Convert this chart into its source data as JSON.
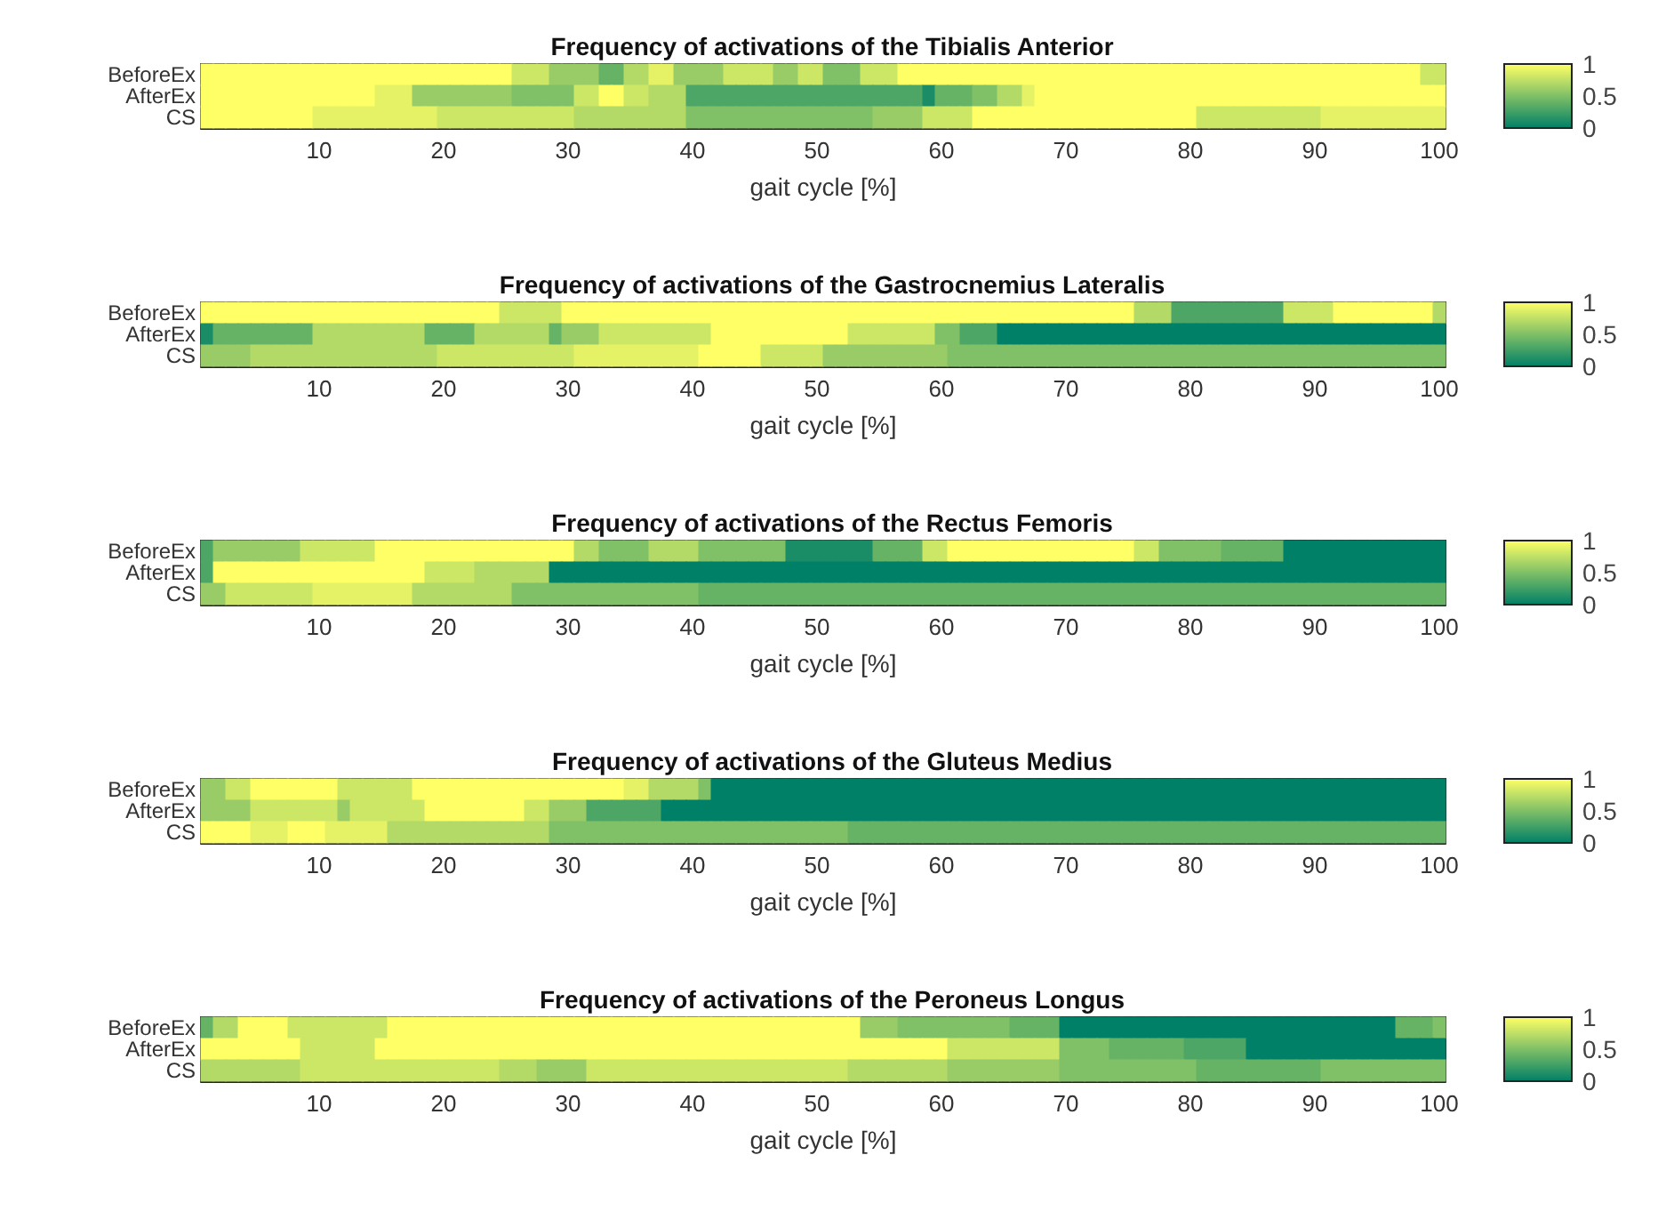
{
  "chart_data": [
    {
      "type": "heatmap",
      "title": "Frequency of activations of the Tibialis Anterior",
      "xlabel": "gait cycle [%]",
      "categories": [
        null,
        null,
        null,
        null,
        null,
        null,
        null,
        null,
        null,
        "10",
        null,
        null,
        null,
        null,
        null,
        null,
        null,
        null,
        null,
        "20",
        null,
        null,
        null,
        null,
        null,
        null,
        null,
        null,
        null,
        "30",
        null,
        null,
        null,
        null,
        null,
        null,
        null,
        null,
        null,
        "40",
        null,
        null,
        null,
        null,
        null,
        null,
        null,
        null,
        null,
        "50",
        null,
        null,
        null,
        null,
        null,
        null,
        null,
        null,
        null,
        "60",
        null,
        null,
        null,
        null,
        null,
        null,
        null,
        null,
        null,
        "70",
        null,
        null,
        null,
        null,
        null,
        null,
        null,
        null,
        null,
        "80",
        null,
        null,
        null,
        null,
        null,
        null,
        null,
        null,
        null,
        "90",
        null,
        null,
        null,
        null,
        null,
        null,
        null,
        null,
        null,
        "100"
      ],
      "y_categories": [
        "BeforeEx",
        "AfterEx",
        "CS"
      ],
      "cells": [
        [
          1,
          1,
          1,
          1,
          1,
          1,
          1,
          1,
          1,
          1,
          1,
          1,
          1,
          1,
          1,
          1,
          1,
          1,
          1,
          1,
          1,
          1,
          1,
          1,
          1,
          0.8,
          0.8,
          0.8,
          0.6,
          0.6,
          0.6,
          0.6,
          0.4,
          0.4,
          0.7,
          0.7,
          0.9,
          0.9,
          0.6,
          0.6,
          0.6,
          0.6,
          0.8,
          0.8,
          0.8,
          0.8,
          0.6,
          0.6,
          0.8,
          0.8,
          0.5,
          0.5,
          0.5,
          0.8,
          0.8,
          0.8,
          1,
          1,
          1,
          1,
          1,
          1,
          1,
          1,
          1,
          1,
          1,
          1,
          1,
          1,
          1,
          1,
          1,
          1,
          1,
          1,
          1,
          1,
          1,
          1,
          1,
          1,
          1,
          1,
          1,
          1,
          1,
          1,
          1,
          1,
          1,
          1,
          1,
          1,
          1,
          1,
          1,
          1,
          0.8,
          0.8
        ],
        [
          1,
          1,
          1,
          1,
          1,
          1,
          1,
          1,
          1,
          1,
          1,
          1,
          1,
          1,
          0.9,
          0.9,
          0.9,
          0.6,
          0.6,
          0.6,
          0.6,
          0.6,
          0.6,
          0.6,
          0.6,
          0.5,
          0.5,
          0.5,
          0.5,
          0.5,
          0.8,
          0.8,
          1,
          1,
          0.8,
          0.8,
          0.7,
          0.7,
          0.7,
          0.3,
          0.3,
          0.3,
          0.3,
          0.3,
          0.3,
          0.3,
          0.3,
          0.3,
          0.3,
          0.3,
          0.3,
          0.3,
          0.3,
          0.3,
          0.3,
          0.3,
          0.3,
          0.3,
          0.1,
          0.4,
          0.4,
          0.4,
          0.5,
          0.5,
          0.7,
          0.7,
          0.9,
          1,
          1,
          1,
          1,
          1,
          1,
          1,
          1,
          1,
          1,
          1,
          1,
          1,
          1,
          1,
          1,
          1,
          1,
          1,
          1,
          1,
          1,
          1,
          1,
          1,
          1,
          1,
          1,
          1,
          1,
          1,
          1,
          1
        ],
        [
          1,
          1,
          1,
          1,
          1,
          1,
          1,
          1,
          1,
          0.9,
          0.9,
          0.9,
          0.9,
          0.9,
          0.9,
          0.9,
          0.9,
          0.9,
          0.9,
          0.8,
          0.8,
          0.8,
          0.8,
          0.8,
          0.8,
          0.8,
          0.8,
          0.8,
          0.8,
          0.8,
          0.7,
          0.7,
          0.7,
          0.7,
          0.7,
          0.7,
          0.7,
          0.7,
          0.7,
          0.5,
          0.5,
          0.5,
          0.5,
          0.5,
          0.5,
          0.5,
          0.5,
          0.5,
          0.5,
          0.5,
          0.5,
          0.5,
          0.5,
          0.5,
          0.6,
          0.6,
          0.6,
          0.6,
          0.8,
          0.8,
          0.8,
          0.8,
          1,
          1,
          1,
          1,
          1,
          1,
          1,
          1,
          1,
          1,
          1,
          1,
          1,
          1,
          1,
          1,
          1,
          1,
          0.8,
          0.8,
          0.8,
          0.8,
          0.8,
          0.8,
          0.8,
          0.8,
          0.8,
          0.8,
          0.9,
          0.9,
          0.9,
          0.9,
          0.9,
          0.9,
          0.9,
          0.9,
          0.9,
          0.9
        ]
      ],
      "clim": [
        0,
        1
      ],
      "cticks": [
        0,
        0.5,
        1
      ]
    },
    {
      "type": "heatmap",
      "title": "Frequency of activations of the Gastrocnemius Lateralis",
      "xlabel": "gait cycle [%]",
      "categories": [
        null,
        null,
        null,
        null,
        null,
        null,
        null,
        null,
        null,
        "10",
        null,
        null,
        null,
        null,
        null,
        null,
        null,
        null,
        null,
        "20",
        null,
        null,
        null,
        null,
        null,
        null,
        null,
        null,
        null,
        "30",
        null,
        null,
        null,
        null,
        null,
        null,
        null,
        null,
        null,
        "40",
        null,
        null,
        null,
        null,
        null,
        null,
        null,
        null,
        null,
        "50",
        null,
        null,
        null,
        null,
        null,
        null,
        null,
        null,
        null,
        "60",
        null,
        null,
        null,
        null,
        null,
        null,
        null,
        null,
        null,
        "70",
        null,
        null,
        null,
        null,
        null,
        null,
        null,
        null,
        null,
        "80",
        null,
        null,
        null,
        null,
        null,
        null,
        null,
        null,
        null,
        "90",
        null,
        null,
        null,
        null,
        null,
        null,
        null,
        null,
        null,
        "100"
      ],
      "y_categories": [
        "BeforeEx",
        "AfterEx",
        "CS"
      ],
      "cells": [
        [
          1,
          1,
          1,
          1,
          1,
          1,
          1,
          1,
          1,
          1,
          1,
          1,
          1,
          1,
          1,
          1,
          1,
          1,
          1,
          1,
          1,
          1,
          1,
          1,
          0.8,
          0.8,
          0.8,
          0.8,
          0.8,
          1,
          1,
          1,
          1,
          1,
          1,
          1,
          1,
          1,
          1,
          1,
          1,
          1,
          1,
          1,
          1,
          1,
          1,
          1,
          1,
          1,
          1,
          1,
          1,
          1,
          1,
          1,
          1,
          1,
          1,
          1,
          1,
          1,
          1,
          1,
          1,
          1,
          1,
          1,
          1,
          1,
          1,
          1,
          1,
          1,
          1,
          0.7,
          0.7,
          0.7,
          0.3,
          0.3,
          0.3,
          0.3,
          0.3,
          0.3,
          0.3,
          0.3,
          0.3,
          0.8,
          0.8,
          0.8,
          0.8,
          1,
          1,
          1,
          1,
          1,
          1,
          1,
          1,
          0.7
        ],
        [
          0.1,
          0.4,
          0.4,
          0.4,
          0.4,
          0.4,
          0.4,
          0.4,
          0.4,
          0.7,
          0.7,
          0.7,
          0.7,
          0.7,
          0.7,
          0.7,
          0.7,
          0.7,
          0.4,
          0.4,
          0.4,
          0.4,
          0.7,
          0.7,
          0.7,
          0.7,
          0.7,
          0.7,
          0.4,
          0.6,
          0.6,
          0.6,
          0.8,
          0.8,
          0.8,
          0.8,
          0.8,
          0.8,
          0.8,
          0.8,
          0.8,
          1,
          1,
          1,
          1,
          1,
          1,
          1,
          1,
          1,
          1,
          1,
          0.8,
          0.8,
          0.8,
          0.8,
          0.8,
          0.8,
          0.8,
          0.5,
          0.5,
          0.3,
          0.3,
          0.3,
          0,
          0,
          0,
          0,
          0,
          0,
          0,
          0,
          0,
          0,
          0,
          0,
          0,
          0,
          0,
          0,
          0,
          0,
          0,
          0,
          0,
          0,
          0,
          0,
          0,
          0,
          0,
          0,
          0,
          0,
          0,
          0,
          0,
          0,
          0,
          0
        ],
        [
          0.6,
          0.6,
          0.6,
          0.6,
          0.7,
          0.7,
          0.7,
          0.7,
          0.7,
          0.7,
          0.7,
          0.7,
          0.7,
          0.7,
          0.7,
          0.7,
          0.7,
          0.7,
          0.7,
          0.8,
          0.8,
          0.8,
          0.8,
          0.8,
          0.8,
          0.8,
          0.8,
          0.8,
          0.8,
          0.8,
          0.9,
          0.9,
          0.9,
          0.9,
          0.9,
          0.9,
          0.9,
          0.9,
          0.9,
          0.9,
          1,
          1,
          1,
          1,
          1,
          0.8,
          0.8,
          0.8,
          0.8,
          0.8,
          0.6,
          0.6,
          0.6,
          0.6,
          0.6,
          0.6,
          0.6,
          0.6,
          0.6,
          0.6,
          0.5,
          0.5,
          0.5,
          0.5,
          0.5,
          0.5,
          0.5,
          0.5,
          0.5,
          0.5,
          0.5,
          0.5,
          0.5,
          0.5,
          0.5,
          0.5,
          0.5,
          0.5,
          0.5,
          0.5,
          0.5,
          0.5,
          0.5,
          0.5,
          0.5,
          0.5,
          0.5,
          0.5,
          0.5,
          0.5,
          0.5,
          0.5,
          0.5,
          0.5,
          0.5,
          0.5,
          0.5,
          0.5,
          0.5,
          0.5
        ]
      ],
      "clim": [
        0,
        1
      ],
      "cticks": [
        0,
        0.5,
        1
      ]
    },
    {
      "type": "heatmap",
      "title": "Frequency of activations of the Rectus Femoris",
      "xlabel": "gait cycle [%]",
      "categories": [
        null,
        null,
        null,
        null,
        null,
        null,
        null,
        null,
        null,
        "10",
        null,
        null,
        null,
        null,
        null,
        null,
        null,
        null,
        null,
        "20",
        null,
        null,
        null,
        null,
        null,
        null,
        null,
        null,
        null,
        "30",
        null,
        null,
        null,
        null,
        null,
        null,
        null,
        null,
        null,
        "40",
        null,
        null,
        null,
        null,
        null,
        null,
        null,
        null,
        null,
        "50",
        null,
        null,
        null,
        null,
        null,
        null,
        null,
        null,
        null,
        "60",
        null,
        null,
        null,
        null,
        null,
        null,
        null,
        null,
        null,
        "70",
        null,
        null,
        null,
        null,
        null,
        null,
        null,
        null,
        null,
        "80",
        null,
        null,
        null,
        null,
        null,
        null,
        null,
        null,
        null,
        "90",
        null,
        null,
        null,
        null,
        null,
        null,
        null,
        null,
        null,
        "100"
      ],
      "y_categories": [
        "BeforeEx",
        "AfterEx",
        "CS"
      ],
      "cells": [
        [
          0.3,
          0.6,
          0.6,
          0.6,
          0.6,
          0.6,
          0.6,
          0.6,
          0.8,
          0.8,
          0.8,
          0.8,
          0.8,
          0.8,
          1,
          1,
          1,
          1,
          1,
          1,
          1,
          1,
          1,
          1,
          1,
          1,
          1,
          1,
          1,
          1,
          0.7,
          0.7,
          0.5,
          0.5,
          0.5,
          0.5,
          0.7,
          0.7,
          0.7,
          0.7,
          0.5,
          0.5,
          0.5,
          0.5,
          0.5,
          0.5,
          0.5,
          0.1,
          0.1,
          0.1,
          0.1,
          0.1,
          0.1,
          0.1,
          0.4,
          0.4,
          0.4,
          0.4,
          0.8,
          0.8,
          1,
          1,
          1,
          1,
          1,
          1,
          1,
          1,
          1,
          1,
          1,
          1,
          1,
          1,
          1,
          0.8,
          0.8,
          0.5,
          0.5,
          0.5,
          0.5,
          0.5,
          0.4,
          0.4,
          0.4,
          0.4,
          0.4,
          0,
          0,
          0,
          0,
          0,
          0,
          0,
          0,
          0,
          0,
          0,
          0,
          0
        ],
        [
          0.3,
          1,
          1,
          1,
          1,
          1,
          1,
          1,
          1,
          1,
          1,
          1,
          1,
          1,
          1,
          1,
          1,
          1,
          0.8,
          0.8,
          0.8,
          0.8,
          0.7,
          0.7,
          0.7,
          0.7,
          0.7,
          0.7,
          0,
          0,
          0,
          0,
          0,
          0,
          0,
          0,
          0,
          0,
          0,
          0,
          0,
          0,
          0,
          0,
          0,
          0,
          0,
          0,
          0,
          0,
          0,
          0,
          0,
          0,
          0,
          0,
          0,
          0,
          0,
          0,
          0,
          0,
          0,
          0,
          0,
          0,
          0,
          0,
          0,
          0,
          0,
          0,
          0,
          0,
          0,
          0,
          0,
          0,
          0,
          0,
          0,
          0,
          0,
          0,
          0,
          0,
          0,
          0,
          0,
          0,
          0,
          0,
          0,
          0,
          0,
          0,
          0,
          0,
          0,
          0
        ],
        [
          0.6,
          0.6,
          0.8,
          0.8,
          0.8,
          0.8,
          0.8,
          0.8,
          0.8,
          0.9,
          0.9,
          0.9,
          0.9,
          0.9,
          0.9,
          0.9,
          0.9,
          0.7,
          0.7,
          0.7,
          0.7,
          0.7,
          0.7,
          0.7,
          0.7,
          0.5,
          0.5,
          0.5,
          0.5,
          0.5,
          0.5,
          0.5,
          0.5,
          0.5,
          0.5,
          0.5,
          0.5,
          0.5,
          0.5,
          0.5,
          0.4,
          0.4,
          0.4,
          0.4,
          0.4,
          0.4,
          0.4,
          0.4,
          0.4,
          0.4,
          0.4,
          0.4,
          0.4,
          0.4,
          0.4,
          0.4,
          0.4,
          0.4,
          0.4,
          0.4,
          0.4,
          0.4,
          0.4,
          0.4,
          0.4,
          0.4,
          0.4,
          0.4,
          0.4,
          0.4,
          0.4,
          0.4,
          0.4,
          0.4,
          0.4,
          0.4,
          0.4,
          0.4,
          0.4,
          0.4,
          0.4,
          0.4,
          0.4,
          0.4,
          0.4,
          0.4,
          0.4,
          0.4,
          0.4,
          0.4,
          0.4,
          0.4,
          0.4,
          0.4,
          0.4,
          0.4,
          0.4,
          0.4,
          0.4,
          0.4
        ]
      ],
      "clim": [
        0,
        1
      ],
      "cticks": [
        0,
        0.5,
        1
      ]
    },
    {
      "type": "heatmap",
      "title": "Frequency of activations of the Gluteus Medius",
      "xlabel": "gait cycle [%]",
      "categories": [
        null,
        null,
        null,
        null,
        null,
        null,
        null,
        null,
        null,
        "10",
        null,
        null,
        null,
        null,
        null,
        null,
        null,
        null,
        null,
        "20",
        null,
        null,
        null,
        null,
        null,
        null,
        null,
        null,
        null,
        "30",
        null,
        null,
        null,
        null,
        null,
        null,
        null,
        null,
        null,
        "40",
        null,
        null,
        null,
        null,
        null,
        null,
        null,
        null,
        null,
        "50",
        null,
        null,
        null,
        null,
        null,
        null,
        null,
        null,
        null,
        "60",
        null,
        null,
        null,
        null,
        null,
        null,
        null,
        null,
        null,
        "70",
        null,
        null,
        null,
        null,
        null,
        null,
        null,
        null,
        null,
        "80",
        null,
        null,
        null,
        null,
        null,
        null,
        null,
        null,
        null,
        "90",
        null,
        null,
        null,
        null,
        null,
        null,
        null,
        null,
        null,
        "100"
      ],
      "y_categories": [
        "BeforeEx",
        "AfterEx",
        "CS"
      ],
      "cells": [
        [
          0.6,
          0.6,
          0.8,
          0.8,
          1,
          1,
          1,
          1,
          1,
          1,
          1,
          0.8,
          0.8,
          0.8,
          0.8,
          0.8,
          0.8,
          1,
          1,
          1,
          1,
          1,
          1,
          1,
          1,
          1,
          1,
          1,
          1,
          1,
          1,
          1,
          1,
          1,
          0.9,
          0.9,
          0.7,
          0.7,
          0.7,
          0.7,
          0.5,
          0,
          0,
          0,
          0,
          0,
          0,
          0,
          0,
          0,
          0,
          0,
          0,
          0,
          0,
          0,
          0,
          0,
          0,
          0,
          0,
          0,
          0,
          0,
          0,
          0,
          0,
          0,
          0,
          0,
          0,
          0,
          0,
          0,
          0,
          0,
          0,
          0,
          0,
          0,
          0,
          0,
          0,
          0,
          0,
          0,
          0,
          0,
          0,
          0,
          0,
          0,
          0,
          0,
          0,
          0,
          0,
          0,
          0,
          0
        ],
        [
          0.6,
          0.6,
          0.6,
          0.6,
          0.8,
          0.8,
          0.8,
          0.8,
          0.8,
          0.8,
          0.8,
          0.6,
          0.8,
          0.8,
          0.8,
          0.8,
          0.8,
          0.8,
          1,
          1,
          1,
          1,
          1,
          1,
          1,
          1,
          0.8,
          0.8,
          0.6,
          0.6,
          0.6,
          0.3,
          0.3,
          0.3,
          0.3,
          0.3,
          0.3,
          0,
          0,
          0,
          0,
          0,
          0,
          0,
          0,
          0,
          0,
          0,
          0,
          0,
          0,
          0,
          0,
          0,
          0,
          0,
          0,
          0,
          0,
          0,
          0,
          0,
          0,
          0,
          0,
          0,
          0,
          0,
          0,
          0,
          0,
          0,
          0,
          0,
          0,
          0,
          0,
          0,
          0,
          0,
          0,
          0,
          0,
          0,
          0,
          0,
          0,
          0,
          0,
          0,
          0,
          0,
          0,
          0,
          0,
          0,
          0,
          0,
          0,
          0
        ],
        [
          1,
          1,
          1,
          1,
          0.9,
          0.9,
          0.9,
          1,
          1,
          1,
          0.9,
          0.9,
          0.9,
          0.9,
          0.9,
          0.7,
          0.7,
          0.7,
          0.7,
          0.7,
          0.7,
          0.7,
          0.7,
          0.7,
          0.7,
          0.7,
          0.7,
          0.7,
          0.5,
          0.5,
          0.5,
          0.5,
          0.5,
          0.5,
          0.5,
          0.5,
          0.5,
          0.5,
          0.5,
          0.5,
          0.5,
          0.5,
          0.5,
          0.5,
          0.5,
          0.5,
          0.5,
          0.5,
          0.5,
          0.5,
          0.5,
          0.5,
          0.4,
          0.4,
          0.4,
          0.4,
          0.4,
          0.4,
          0.4,
          0.4,
          0.4,
          0.4,
          0.4,
          0.4,
          0.4,
          0.4,
          0.4,
          0.4,
          0.4,
          0.4,
          0.4,
          0.4,
          0.4,
          0.4,
          0.4,
          0.4,
          0.4,
          0.4,
          0.4,
          0.4,
          0.4,
          0.4,
          0.4,
          0.4,
          0.4,
          0.4,
          0.4,
          0.4,
          0.4,
          0.4,
          0.4,
          0.4,
          0.4,
          0.4,
          0.4,
          0.4,
          0.4,
          0.4,
          0.4,
          0.4
        ]
      ],
      "clim": [
        0,
        1
      ],
      "cticks": [
        0,
        0.5,
        1
      ]
    },
    {
      "type": "heatmap",
      "title": "Frequency of activations of the Peroneus Longus",
      "xlabel": "gait cycle [%]",
      "categories": [
        null,
        null,
        null,
        null,
        null,
        null,
        null,
        null,
        null,
        "10",
        null,
        null,
        null,
        null,
        null,
        null,
        null,
        null,
        null,
        "20",
        null,
        null,
        null,
        null,
        null,
        null,
        null,
        null,
        null,
        "30",
        null,
        null,
        null,
        null,
        null,
        null,
        null,
        null,
        null,
        "40",
        null,
        null,
        null,
        null,
        null,
        null,
        null,
        null,
        null,
        "50",
        null,
        null,
        null,
        null,
        null,
        null,
        null,
        null,
        null,
        "60",
        null,
        null,
        null,
        null,
        null,
        null,
        null,
        null,
        null,
        "70",
        null,
        null,
        null,
        null,
        null,
        null,
        null,
        null,
        null,
        "80",
        null,
        null,
        null,
        null,
        null,
        null,
        null,
        null,
        null,
        "90",
        null,
        null,
        null,
        null,
        null,
        null,
        null,
        null,
        null,
        "100"
      ],
      "y_categories": [
        "BeforeEx",
        "AfterEx",
        "CS"
      ],
      "cells": [
        [
          0.4,
          0.7,
          0.7,
          1,
          1,
          1,
          1,
          0.8,
          0.8,
          0.8,
          0.8,
          0.8,
          0.8,
          0.8,
          0.8,
          1,
          1,
          1,
          1,
          1,
          1,
          1,
          1,
          1,
          1,
          1,
          1,
          1,
          1,
          1,
          1,
          1,
          1,
          1,
          1,
          1,
          1,
          1,
          1,
          1,
          1,
          1,
          1,
          1,
          1,
          1,
          1,
          1,
          1,
          1,
          1,
          1,
          1,
          0.6,
          0.6,
          0.6,
          0.5,
          0.5,
          0.5,
          0.5,
          0.5,
          0.5,
          0.5,
          0.5,
          0.5,
          0.4,
          0.4,
          0.4,
          0.4,
          0,
          0,
          0,
          0,
          0,
          0,
          0,
          0,
          0,
          0,
          0,
          0,
          0,
          0,
          0,
          0,
          0,
          0,
          0,
          0,
          0,
          0,
          0,
          0,
          0,
          0,
          0,
          0.4,
          0.4,
          0.4,
          0.5
        ],
        [
          1,
          1,
          1,
          1,
          1,
          1,
          1,
          1,
          0.8,
          0.8,
          0.8,
          0.8,
          0.8,
          0.8,
          1,
          1,
          1,
          1,
          1,
          1,
          1,
          1,
          1,
          1,
          1,
          1,
          1,
          1,
          1,
          1,
          1,
          1,
          1,
          1,
          1,
          1,
          1,
          1,
          1,
          1,
          1,
          1,
          1,
          1,
          1,
          1,
          1,
          1,
          1,
          1,
          1,
          1,
          1,
          1,
          1,
          1,
          1,
          1,
          1,
          1,
          0.8,
          0.8,
          0.8,
          0.8,
          0.8,
          0.8,
          0.8,
          0.8,
          0.8,
          0.5,
          0.5,
          0.5,
          0.5,
          0.4,
          0.4,
          0.4,
          0.4,
          0.4,
          0.4,
          0.3,
          0.3,
          0.3,
          0.3,
          0.3,
          0,
          0,
          0,
          0,
          0,
          0,
          0,
          0,
          0,
          0,
          0,
          0,
          0,
          0,
          0,
          0
        ],
        [
          0.7,
          0.7,
          0.7,
          0.7,
          0.7,
          0.7,
          0.7,
          0.7,
          0.8,
          0.8,
          0.8,
          0.8,
          0.8,
          0.8,
          0.8,
          0.8,
          0.8,
          0.8,
          0.8,
          0.8,
          0.8,
          0.8,
          0.8,
          0.8,
          0.7,
          0.7,
          0.7,
          0.6,
          0.6,
          0.6,
          0.6,
          0.8,
          0.8,
          0.8,
          0.8,
          0.8,
          0.8,
          0.8,
          0.8,
          0.8,
          0.8,
          0.8,
          0.8,
          0.8,
          0.8,
          0.8,
          0.8,
          0.8,
          0.8,
          0.8,
          0.8,
          0.8,
          0.7,
          0.7,
          0.7,
          0.7,
          0.7,
          0.7,
          0.7,
          0.7,
          0.6,
          0.6,
          0.6,
          0.6,
          0.6,
          0.6,
          0.6,
          0.6,
          0.6,
          0.5,
          0.5,
          0.5,
          0.5,
          0.5,
          0.5,
          0.5,
          0.5,
          0.5,
          0.5,
          0.5,
          0.4,
          0.4,
          0.4,
          0.4,
          0.4,
          0.4,
          0.4,
          0.4,
          0.4,
          0.4,
          0.5,
          0.5,
          0.5,
          0.5,
          0.5,
          0.5,
          0.5,
          0.5,
          0.5,
          0.5
        ]
      ],
      "clim": [
        0,
        1
      ],
      "cticks": [
        0,
        0.5,
        1
      ]
    }
  ]
}
